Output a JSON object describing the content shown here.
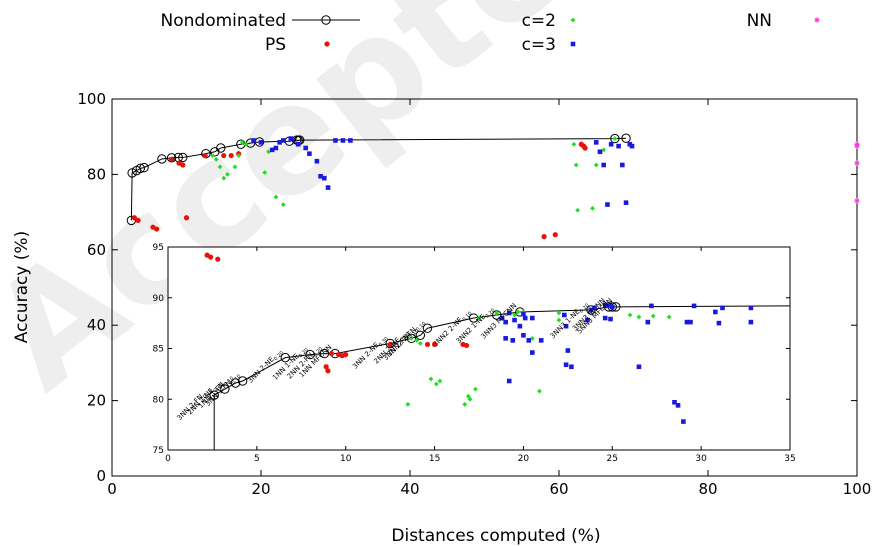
{
  "watermark": "Accepted",
  "colors": {
    "nondominated": "#000000",
    "ps": "#e8120c",
    "c2": "#22dd22",
    "c3": "#1a1adf",
    "nn": "#ff33dd"
  },
  "chart_data": [
    {
      "type": "scatter",
      "title": "",
      "xlabel": "Distances computed (%)",
      "ylabel": "Accuracy (%)",
      "xlim": [
        0,
        100
      ],
      "ylim": [
        0,
        100
      ],
      "xticks": [
        "0",
        "20",
        "40",
        "60",
        "80",
        "100"
      ],
      "yticks": [
        "0",
        "20",
        "40",
        "60",
        "80",
        "100"
      ],
      "grid": false,
      "legend": {
        "placement": "top",
        "entries": [
          {
            "series": "Nondominated",
            "label": "Nondominated"
          },
          {
            "series": "PS",
            "label": "PS"
          },
          {
            "series": "c2",
            "label": "c=2"
          },
          {
            "series": "c3",
            "label": "c=3"
          },
          {
            "series": "NN",
            "label": "NN"
          }
        ]
      },
      "series": [
        {
          "name": "Nondominated",
          "style": "line-circle",
          "points": [
            [
              2.6,
              67.8
            ],
            [
              2.7,
              80.4
            ],
            [
              3.3,
              81.0
            ],
            [
              3.8,
              81.6
            ],
            [
              4.3,
              81.8
            ],
            [
              6.7,
              84.1
            ],
            [
              8.0,
              84.4
            ],
            [
              8.9,
              84.5
            ],
            [
              9.5,
              84.5
            ],
            [
              12.6,
              85.5
            ],
            [
              13.8,
              86.0
            ],
            [
              14.6,
              87.0
            ],
            [
              17.3,
              88.0
            ],
            [
              18.6,
              88.3
            ],
            [
              19.8,
              88.6
            ],
            [
              23.8,
              88.8
            ],
            [
              24.8,
              89.1
            ],
            [
              25.0,
              89.0
            ],
            [
              25.2,
              89.1
            ],
            [
              67.5,
              89.5
            ],
            [
              69.0,
              89.6
            ]
          ]
        },
        {
          "name": "PS",
          "style": "dot",
          "points": [
            [
              3.0,
              68.5
            ],
            [
              3.5,
              67.8
            ],
            [
              5.5,
              66.0
            ],
            [
              6.0,
              65.5
            ],
            [
              8.0,
              84.0
            ],
            [
              9.0,
              83.0
            ],
            [
              9.5,
              82.5
            ],
            [
              10.0,
              68.5
            ],
            [
              12.5,
              85.0
            ],
            [
              15.0,
              85.0
            ],
            [
              16.0,
              85.0
            ],
            [
              17.0,
              85.5
            ],
            [
              58.0,
              63.5
            ],
            [
              59.5,
              64.0
            ],
            [
              63.0,
              88.0
            ],
            [
              63.3,
              87.5
            ],
            [
              63.5,
              87.0
            ]
          ]
        },
        {
          "name": "c2",
          "style": "diamond",
          "points": [
            [
              13.5,
              85.0
            ],
            [
              14.0,
              84.0
            ],
            [
              14.5,
              82.0
            ],
            [
              15.0,
              79.0
            ],
            [
              15.5,
              80.0
            ],
            [
              16.5,
              82.0
            ],
            [
              17.0,
              85.0
            ],
            [
              17.5,
              88.5
            ],
            [
              18.0,
              88.0
            ],
            [
              22.0,
              74.0
            ],
            [
              23.0,
              72.0
            ],
            [
              20.5,
              80.5
            ],
            [
              21.0,
              86.0
            ],
            [
              62.0,
              88.0
            ],
            [
              62.3,
              82.5
            ],
            [
              62.5,
              70.5
            ],
            [
              64.5,
              71.0
            ],
            [
              65.0,
              82.5
            ],
            [
              66.0,
              86.5
            ],
            [
              67.5,
              89.5
            ]
          ]
        },
        {
          "name": "c3",
          "style": "square",
          "points": [
            [
              19.0,
              89.0
            ],
            [
              20.0,
              88.5
            ],
            [
              21.5,
              86.5
            ],
            [
              22.0,
              87.0
            ],
            [
              22.5,
              88.5
            ],
            [
              23.0,
              89.0
            ],
            [
              24.0,
              89.5
            ],
            [
              25.0,
              88.0
            ],
            [
              26.0,
              87.0
            ],
            [
              26.5,
              85.5
            ],
            [
              27.5,
              83.5
            ],
            [
              28.0,
              79.5
            ],
            [
              28.5,
              79.0
            ],
            [
              29.0,
              76.5
            ],
            [
              30.0,
              89.0
            ],
            [
              31.0,
              89.0
            ],
            [
              32.0,
              89.0
            ],
            [
              65.0,
              88.5
            ],
            [
              65.5,
              86.0
            ],
            [
              66.0,
              82.5
            ],
            [
              66.5,
              72.0
            ],
            [
              67.0,
              88.0
            ],
            [
              68.0,
              87.5
            ],
            [
              68.5,
              82.5
            ],
            [
              69.0,
              72.5
            ],
            [
              69.5,
              88.0
            ],
            [
              69.8,
              87.5
            ]
          ]
        },
        {
          "name": "NN",
          "style": "star",
          "points": [
            [
              100,
              88.0
            ],
            [
              100,
              87.5
            ],
            [
              100,
              83.0
            ],
            [
              100,
              73.0
            ]
          ]
        }
      ]
    },
    {
      "type": "scatter",
      "title": "",
      "xlim": [
        0,
        35
      ],
      "ylim": [
        75,
        95
      ],
      "xticks": [
        "0",
        "5",
        "10",
        "15",
        "20",
        "25",
        "30",
        "35"
      ],
      "yticks": [
        "75",
        "80",
        "85",
        "90",
        "95"
      ],
      "grid": false,
      "annotations": [
        {
          "text": "3NN 2-FN",
          "sub": "0.10",
          "x": 2.6,
          "y": 80.4
        },
        {
          "text": "2NN 1-NE",
          "sub": "0.10",
          "x": 3.2,
          "y": 81.0
        },
        {
          "text": "1NN 1-FN",
          "sub": "0.10",
          "x": 3.8,
          "y": 81.6
        },
        {
          "text": "3NN 1-FN",
          "sub": "0.10",
          "x": 4.2,
          "y": 81.8
        },
        {
          "text": "3NN 2-NE",
          "sub": "0.20",
          "x": 6.6,
          "y": 84.1
        },
        {
          "text": "1NN 1-NE",
          "sub": "0.20",
          "x": 8.0,
          "y": 84.4
        },
        {
          "text": "2NN 2-FN",
          "sub": "0.20",
          "x": 8.8,
          "y": 84.5
        },
        {
          "text": "1NN MFCNN",
          "sub": "",
          "x": 9.4,
          "y": 84.5
        },
        {
          "text": "3NN 2-NE",
          "sub": "0.30",
          "x": 12.5,
          "y": 85.5
        },
        {
          "text": "2NN 2-NE",
          "sub": "0.10",
          "x": 13.7,
          "y": 86.0
        },
        {
          "text": "3NN 2-FN",
          "sub": "0.10",
          "x": 14.2,
          "y": 86.3
        },
        {
          "text": "3NN2 2-FN",
          "sub": "0.10",
          "x": 14.6,
          "y": 87.0
        },
        {
          "text": "3NN2 2-NE",
          "sub": "0.10",
          "x": 17.2,
          "y": 88.0
        },
        {
          "text": "3NN2 1-NE",
          "sub": "0.20",
          "x": 18.5,
          "y": 88.3
        },
        {
          "text": "3NN3 MFCNN",
          "sub": "",
          "x": 19.8,
          "y": 88.6
        },
        {
          "text": "3NN3 1-NE",
          "sub": "0.20",
          "x": 23.8,
          "y": 88.8
        },
        {
          "text": "3NN3 MCNN",
          "sub": "",
          "x": 24.8,
          "y": 89.1
        },
        {
          "text": "5NN3 MFCNN",
          "sub": "",
          "x": 25.2,
          "y": 89.1
        }
      ],
      "series": [
        {
          "name": "Nondominated",
          "style": "line-circle",
          "points": [
            [
              2.6,
              75.0
            ],
            [
              2.6,
              80.4
            ],
            [
              3.2,
              81.0
            ],
            [
              3.8,
              81.6
            ],
            [
              4.2,
              81.8
            ],
            [
              6.6,
              84.1
            ],
            [
              8.0,
              84.4
            ],
            [
              8.8,
              84.5
            ],
            [
              9.4,
              84.5
            ],
            [
              12.5,
              85.5
            ],
            [
              13.7,
              86.0
            ],
            [
              14.2,
              86.3
            ],
            [
              14.6,
              87.0
            ],
            [
              17.2,
              88.0
            ],
            [
              18.5,
              88.3
            ],
            [
              19.8,
              88.6
            ],
            [
              23.8,
              88.8
            ],
            [
              24.8,
              89.1
            ],
            [
              25.0,
              89.1
            ],
            [
              25.2,
              89.1
            ],
            [
              35.0,
              89.2
            ]
          ]
        },
        {
          "name": "PS",
          "style": "dot",
          "points": [
            [
              2.2,
              94.2
            ],
            [
              2.4,
              94.0
            ],
            [
              2.8,
              93.8
            ],
            [
              9.2,
              84.5
            ],
            [
              9.6,
              84.4
            ],
            [
              9.8,
              84.3
            ],
            [
              10.0,
              84.4
            ],
            [
              8.9,
              83.2
            ],
            [
              9.0,
              82.8
            ],
            [
              12.5,
              85.4
            ],
            [
              14.6,
              85.4
            ],
            [
              15.0,
              85.4
            ],
            [
              16.6,
              85.4
            ],
            [
              16.8,
              85.3
            ]
          ]
        },
        {
          "name": "c2",
          "style": "diamond",
          "points": [
            [
              13.5,
              79.5
            ],
            [
              13.7,
              86.0
            ],
            [
              14.0,
              85.8
            ],
            [
              14.2,
              85.5
            ],
            [
              14.8,
              82.0
            ],
            [
              15.1,
              81.5
            ],
            [
              15.3,
              81.8
            ],
            [
              16.7,
              79.5
            ],
            [
              16.9,
              80.3
            ],
            [
              17.0,
              80.0
            ],
            [
              17.3,
              81.0
            ],
            [
              17.5,
              88.0
            ],
            [
              18.5,
              88.5
            ],
            [
              19.5,
              88.3
            ],
            [
              19.7,
              88.6
            ],
            [
              20.0,
              88.6
            ],
            [
              20.5,
              86.0
            ],
            [
              20.9,
              80.8
            ],
            [
              22.0,
              88.5
            ],
            [
              22.0,
              87.8
            ],
            [
              26.0,
              88.3
            ],
            [
              26.5,
              88.1
            ],
            [
              27.3,
              88.2
            ],
            [
              28.2,
              88.1
            ]
          ]
        },
        {
          "name": "c3",
          "style": "square",
          "points": [
            [
              18.8,
              88.0
            ],
            [
              19.0,
              87.6
            ],
            [
              19.2,
              88.5
            ],
            [
              19.5,
              87.8
            ],
            [
              19.8,
              87.2
            ],
            [
              20.0,
              88.4
            ],
            [
              20.1,
              88.0
            ],
            [
              20.5,
              88.0
            ],
            [
              19.0,
              86.0
            ],
            [
              19.4,
              85.8
            ],
            [
              20.0,
              86.3
            ],
            [
              20.3,
              85.8
            ],
            [
              21.0,
              85.8
            ],
            [
              20.5,
              84.6
            ],
            [
              19.2,
              81.8
            ],
            [
              22.3,
              88.3
            ],
            [
              22.4,
              87.2
            ],
            [
              22.5,
              84.8
            ],
            [
              22.4,
              83.4
            ],
            [
              22.7,
              83.2
            ],
            [
              23.6,
              87.8
            ],
            [
              23.8,
              88.8
            ],
            [
              24.0,
              89.0
            ],
            [
              24.6,
              89.3
            ],
            [
              24.8,
              89.2
            ],
            [
              25.0,
              89.1
            ],
            [
              24.6,
              88.0
            ],
            [
              24.9,
              87.9
            ],
            [
              26.5,
              83.2
            ],
            [
              27.0,
              87.6
            ],
            [
              27.2,
              89.2
            ],
            [
              28.5,
              79.7
            ],
            [
              28.7,
              79.4
            ],
            [
              29.0,
              77.8
            ],
            [
              29.2,
              87.6
            ],
            [
              29.6,
              89.2
            ],
            [
              29.4,
              87.6
            ],
            [
              30.8,
              88.6
            ],
            [
              31.0,
              87.5
            ],
            [
              31.2,
              89.0
            ],
            [
              32.8,
              89.0
            ],
            [
              32.8,
              87.6
            ]
          ]
        }
      ]
    }
  ]
}
